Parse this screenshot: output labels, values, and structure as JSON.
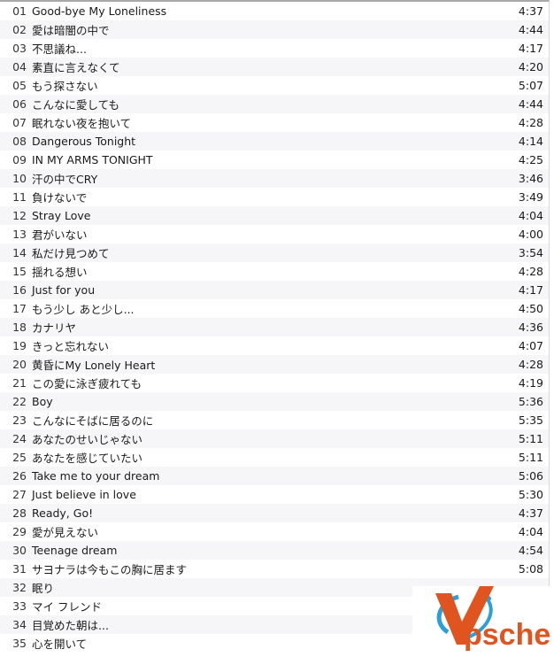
{
  "tracks": [
    {
      "num": "01",
      "title": "Good-bye My Loneliness",
      "duration": "4:37"
    },
    {
      "num": "02",
      "title": "愛は暗闇の中で",
      "duration": "4:44"
    },
    {
      "num": "03",
      "title": "不思議ね...",
      "duration": "4:17"
    },
    {
      "num": "04",
      "title": "素直に言えなくて",
      "duration": "4:20"
    },
    {
      "num": "05",
      "title": "もう探さない",
      "duration": "5:07"
    },
    {
      "num": "06",
      "title": "こんなに愛しても",
      "duration": "4:44"
    },
    {
      "num": "07",
      "title": "眠れない夜を抱いて",
      "duration": "4:28"
    },
    {
      "num": "08",
      "title": "Dangerous Tonight",
      "duration": "4:14"
    },
    {
      "num": "09",
      "title": "IN MY ARMS TONIGHT",
      "duration": "4:25"
    },
    {
      "num": "10",
      "title": "汗の中でCRY",
      "duration": "3:46"
    },
    {
      "num": "11",
      "title": "負けないで",
      "duration": "3:49"
    },
    {
      "num": "12",
      "title": "Stray Love",
      "duration": "4:04"
    },
    {
      "num": "13",
      "title": "君がいない",
      "duration": "4:00"
    },
    {
      "num": "14",
      "title": "私だけ見つめて",
      "duration": "3:54"
    },
    {
      "num": "15",
      "title": "揺れる想い",
      "duration": "4:28"
    },
    {
      "num": "16",
      "title": "Just for you",
      "duration": "4:17"
    },
    {
      "num": "17",
      "title": "もう少し あと少し...",
      "duration": "4:50"
    },
    {
      "num": "18",
      "title": "カナリヤ",
      "duration": "4:36"
    },
    {
      "num": "19",
      "title": "きっと忘れない",
      "duration": "4:07"
    },
    {
      "num": "20",
      "title": "黄昏にMy Lonely Heart",
      "duration": "4:28"
    },
    {
      "num": "21",
      "title": "この愛に泳ぎ疲れても",
      "duration": "4:19"
    },
    {
      "num": "22",
      "title": "Boy",
      "duration": "5:36"
    },
    {
      "num": "23",
      "title": "こんなにそばに居るのに",
      "duration": "5:35"
    },
    {
      "num": "24",
      "title": "あなたのせいじゃない",
      "duration": "5:11"
    },
    {
      "num": "25",
      "title": "あなたを感じていたい",
      "duration": "5:11"
    },
    {
      "num": "26",
      "title": "Take me to your dream",
      "duration": "5:06"
    },
    {
      "num": "27",
      "title": "Just believe in love",
      "duration": "5:30"
    },
    {
      "num": "28",
      "title": "Ready, Go!",
      "duration": "4:37"
    },
    {
      "num": "29",
      "title": "愛が見えない",
      "duration": "4:04"
    },
    {
      "num": "30",
      "title": "Teenage dream",
      "duration": "4:54"
    },
    {
      "num": "31",
      "title": "サヨナラは今もこの胸に居ます",
      "duration": "5:08"
    },
    {
      "num": "32",
      "title": "眠り",
      "duration": ""
    },
    {
      "num": "33",
      "title": "マイ フレンド",
      "duration": ""
    },
    {
      "num": "34",
      "title": "目覚めた朝は...",
      "duration": ""
    },
    {
      "num": "35",
      "title": "心を開いて",
      "duration": ""
    }
  ],
  "watermark": {
    "text": "Vpsche",
    "colors": {
      "orange": "#e0541f",
      "blue": "#2a9fd8"
    }
  }
}
